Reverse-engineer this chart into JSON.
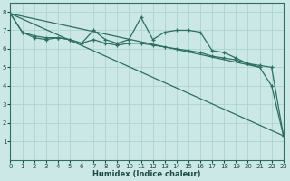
{
  "xlabel": "Humidex (Indice chaleur)",
  "bg_color": "#cce8e6",
  "grid_color": "#aad4d0",
  "line_color": "#2a7060",
  "xlim": [
    0,
    23
  ],
  "ylim": [
    0,
    8.5
  ],
  "xticks": [
    0,
    1,
    2,
    3,
    4,
    5,
    6,
    7,
    8,
    9,
    10,
    11,
    12,
    13,
    14,
    15,
    16,
    17,
    18,
    19,
    20,
    21,
    22,
    23
  ],
  "yticks": [
    1,
    2,
    3,
    4,
    5,
    6,
    7,
    8
  ],
  "series_jagged": {
    "x": [
      0,
      1,
      2,
      3,
      4,
      5,
      6,
      7,
      8,
      9,
      10,
      11,
      12,
      13,
      14,
      15,
      16,
      17,
      18,
      19,
      20,
      21,
      22,
      23
    ],
    "y": [
      7.9,
      6.9,
      6.6,
      6.5,
      6.6,
      6.5,
      6.3,
      7.0,
      6.5,
      6.3,
      6.5,
      7.7,
      6.5,
      6.9,
      7.0,
      7.0,
      6.9,
      5.9,
      5.8,
      5.5,
      5.2,
      5.0,
      4.0,
      1.3
    ]
  },
  "series_smooth": {
    "x": [
      0,
      1,
      2,
      3,
      4,
      5,
      6,
      7,
      8,
      9,
      10,
      11,
      12,
      13,
      14,
      15,
      16,
      17,
      18,
      19,
      20,
      21,
      22,
      23
    ],
    "y": [
      7.9,
      6.9,
      6.7,
      6.6,
      6.6,
      6.5,
      6.3,
      6.5,
      6.3,
      6.2,
      6.3,
      6.3,
      6.2,
      6.1,
      6.0,
      5.9,
      5.8,
      5.6,
      5.5,
      5.4,
      5.2,
      5.1,
      5.0,
      1.3
    ]
  },
  "series_diag": {
    "x": [
      0,
      21
    ],
    "y": [
      7.9,
      5.0
    ]
  },
  "series_diag2": {
    "x": [
      0,
      23
    ],
    "y": [
      7.9,
      1.3
    ]
  }
}
